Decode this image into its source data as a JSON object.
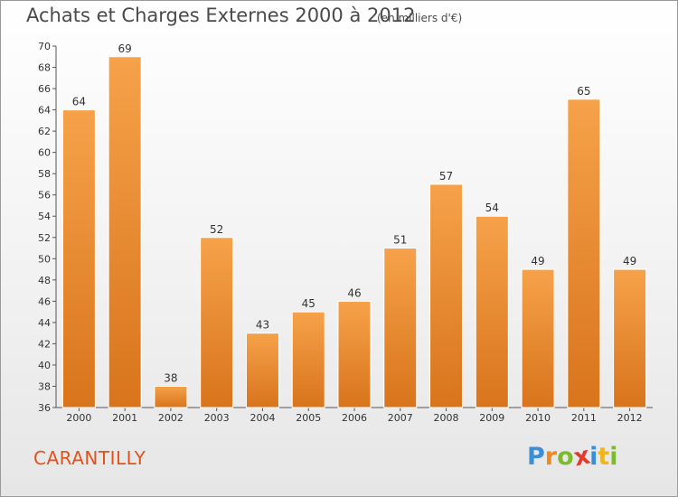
{
  "chart_data": {
    "type": "bar",
    "title": "Achats et Charges Externes 2000 à 2012",
    "subtitle": "(en milliers d'€)",
    "categories": [
      "2000",
      "2001",
      "2002",
      "2003",
      "2004",
      "2005",
      "2006",
      "2007",
      "2008",
      "2009",
      "2010",
      "2011",
      "2012"
    ],
    "values": [
      64,
      69,
      38,
      52,
      43,
      45,
      46,
      51,
      57,
      54,
      49,
      65,
      49
    ],
    "ylim": [
      36,
      70
    ],
    "yticks": [
      36,
      38,
      40,
      42,
      44,
      46,
      48,
      50,
      52,
      54,
      56,
      58,
      60,
      62,
      64,
      66,
      68,
      70
    ],
    "xlabel": "",
    "ylabel": "",
    "grid": false,
    "bar_color_top": "#f6a24a",
    "bar_color_bottom": "#d8741c"
  },
  "footer": {
    "commune": "CARANTILLY",
    "commune_color": "#e2531a",
    "logo_letters": [
      {
        "char": "P",
        "color": "#3a8fd8"
      },
      {
        "char": "r",
        "color": "#f08a1e"
      },
      {
        "char": "o",
        "color": "#7dbb2e"
      },
      {
        "char": "x",
        "color": "#e23c2c"
      },
      {
        "char": "i",
        "color": "#3a8fd8"
      },
      {
        "char": "t",
        "color": "#f0b41e"
      },
      {
        "char": "i",
        "color": "#7dbb2e"
      }
    ]
  }
}
